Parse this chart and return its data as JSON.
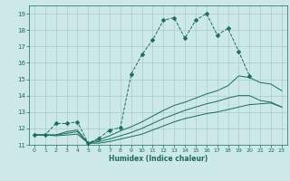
{
  "xlabel": "Humidex (Indice chaleur)",
  "background_color": "#cce8e8",
  "grid_color": "#aacccc",
  "line_color": "#1a6b5a",
  "xlim": [
    -0.5,
    23.5
  ],
  "ylim": [
    11,
    19.5
  ],
  "yticks": [
    11,
    12,
    13,
    14,
    15,
    16,
    17,
    18,
    19
  ],
  "xticks": [
    0,
    1,
    2,
    3,
    4,
    5,
    6,
    7,
    8,
    9,
    10,
    11,
    12,
    13,
    14,
    15,
    16,
    17,
    18,
    19,
    20,
    21,
    22,
    23
  ],
  "series": [
    {
      "x": [
        0,
        1,
        2,
        3,
        4,
        5,
        6,
        7,
        8,
        9,
        10,
        11,
        12,
        13,
        14,
        15,
        16,
        17,
        18,
        19,
        20,
        21,
        22,
        23
      ],
      "y": [
        11.6,
        11.6,
        12.3,
        12.3,
        12.4,
        11.1,
        11.4,
        11.9,
        12.05,
        15.3,
        16.5,
        17.4,
        18.6,
        18.75,
        17.5,
        18.6,
        19.0,
        17.7,
        18.1,
        16.7,
        15.2,
        null,
        null,
        null
      ],
      "marker": "D",
      "markersize": 2.5,
      "linestyle": "--"
    },
    {
      "x": [
        0,
        1,
        2,
        3,
        4,
        5,
        6,
        7,
        8,
        9,
        10,
        11,
        12,
        13,
        14,
        15,
        16,
        17,
        18,
        19,
        20,
        21,
        22,
        23
      ],
      "y": [
        11.6,
        11.6,
        11.55,
        11.6,
        11.65,
        11.1,
        11.1,
        11.2,
        11.35,
        11.5,
        11.65,
        11.9,
        12.15,
        12.4,
        12.6,
        12.75,
        12.9,
        13.0,
        13.15,
        13.3,
        13.45,
        13.5,
        13.55,
        13.3
      ],
      "marker": null,
      "markersize": 0,
      "linestyle": "-"
    },
    {
      "x": [
        0,
        1,
        2,
        3,
        4,
        5,
        6,
        7,
        8,
        9,
        10,
        11,
        12,
        13,
        14,
        15,
        16,
        17,
        18,
        19,
        20,
        21,
        22,
        23
      ],
      "y": [
        11.6,
        11.6,
        11.6,
        11.7,
        11.8,
        11.1,
        11.2,
        11.35,
        11.55,
        11.75,
        12.0,
        12.3,
        12.6,
        12.85,
        13.1,
        13.3,
        13.5,
        13.65,
        13.85,
        14.0,
        14.0,
        13.7,
        13.6,
        13.3
      ],
      "marker": null,
      "markersize": 0,
      "linestyle": "-"
    },
    {
      "x": [
        0,
        1,
        2,
        3,
        4,
        5,
        6,
        7,
        8,
        9,
        10,
        11,
        12,
        13,
        14,
        15,
        16,
        17,
        18,
        19,
        20,
        21,
        22,
        23
      ],
      "y": [
        11.6,
        11.6,
        11.6,
        11.8,
        11.9,
        11.1,
        11.3,
        11.55,
        11.85,
        12.1,
        12.4,
        12.75,
        13.1,
        13.4,
        13.6,
        13.85,
        14.1,
        14.3,
        14.6,
        15.2,
        15.1,
        14.8,
        14.7,
        14.3
      ],
      "marker": null,
      "markersize": 0,
      "linestyle": "-"
    }
  ]
}
